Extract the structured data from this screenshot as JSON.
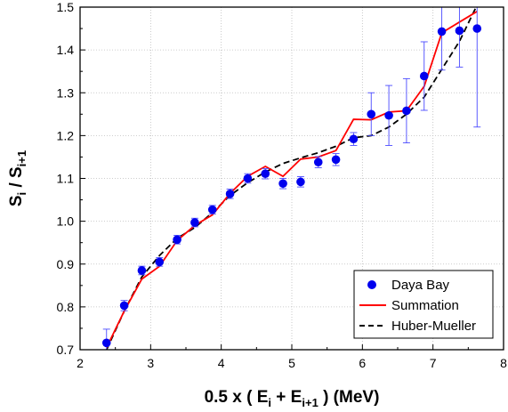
{
  "chart_data": {
    "type": "scatter",
    "xlabel": {
      "main": "0.5 x ( E",
      "sub1": "i",
      "mid": " + E",
      "sub2": "i+1",
      "tail": " ) (MeV)"
    },
    "ylabel": {
      "a": "S",
      "a_sub": "i",
      "mid": " / S",
      "b_sub": "i+1"
    },
    "xlim": [
      2,
      8
    ],
    "ylim": [
      0.7,
      1.5
    ],
    "x_ticks": [
      "2",
      "3",
      "4",
      "5",
      "6",
      "7",
      "8"
    ],
    "y_ticks": [
      "0.7",
      "0.8",
      "0.9",
      "1.0",
      "1.1",
      "1.2",
      "1.3",
      "1.4",
      "1.5"
    ],
    "grid": true,
    "legend_position": "bottom-right",
    "series": [
      {
        "name": "Daya Bay",
        "kind": "points_with_error",
        "color": "#0000ee",
        "x": [
          2.375,
          2.625,
          2.875,
          3.125,
          3.375,
          3.625,
          3.875,
          4.125,
          4.375,
          4.625,
          4.875,
          5.125,
          5.375,
          5.625,
          5.875,
          6.125,
          6.375,
          6.625,
          6.875,
          7.125,
          7.375,
          7.625
        ],
        "y": [
          0.716,
          0.803,
          0.885,
          0.905,
          0.957,
          0.997,
          1.027,
          1.064,
          1.1,
          1.111,
          1.088,
          1.092,
          1.138,
          1.144,
          1.192,
          1.25,
          1.247,
          1.258,
          1.339,
          1.443,
          1.445,
          1.45
        ],
        "err": [
          0.032,
          0.012,
          0.01,
          0.01,
          0.01,
          0.01,
          0.01,
          0.011,
          0.011,
          0.012,
          0.012,
          0.012,
          0.013,
          0.014,
          0.015,
          0.05,
          0.07,
          0.075,
          0.08,
          0.09,
          0.085,
          0.23
        ]
      },
      {
        "name": "Summation",
        "kind": "line",
        "color": "#ff0000",
        "x": [
          2.375,
          2.625,
          2.875,
          3.125,
          3.375,
          3.625,
          3.875,
          4.125,
          4.375,
          4.625,
          4.875,
          5.125,
          5.375,
          5.625,
          5.875,
          6.125,
          6.375,
          6.625,
          6.875,
          7.125,
          7.375,
          7.625
        ],
        "y": [
          0.705,
          0.79,
          0.865,
          0.895,
          0.955,
          0.99,
          1.015,
          1.065,
          1.105,
          1.128,
          1.105,
          1.145,
          1.15,
          1.165,
          1.238,
          1.237,
          1.255,
          1.258,
          1.315,
          1.44,
          1.465,
          1.49
        ]
      },
      {
        "name": "Huber-Mueller",
        "kind": "dashed_line",
        "color": "#000000",
        "x": [
          2.375,
          2.625,
          2.875,
          3.125,
          3.375,
          3.625,
          3.875,
          4.125,
          4.375,
          4.625,
          4.875,
          5.125,
          5.375,
          5.625,
          5.875,
          6.125,
          6.375,
          6.625,
          6.875,
          7.125,
          7.375,
          7.625
        ],
        "y": [
          0.7,
          0.79,
          0.87,
          0.92,
          0.96,
          0.985,
          1.02,
          1.06,
          1.09,
          1.115,
          1.135,
          1.148,
          1.16,
          1.175,
          1.195,
          1.2,
          1.22,
          1.25,
          1.29,
          1.355,
          1.42,
          1.505
        ]
      }
    ]
  }
}
